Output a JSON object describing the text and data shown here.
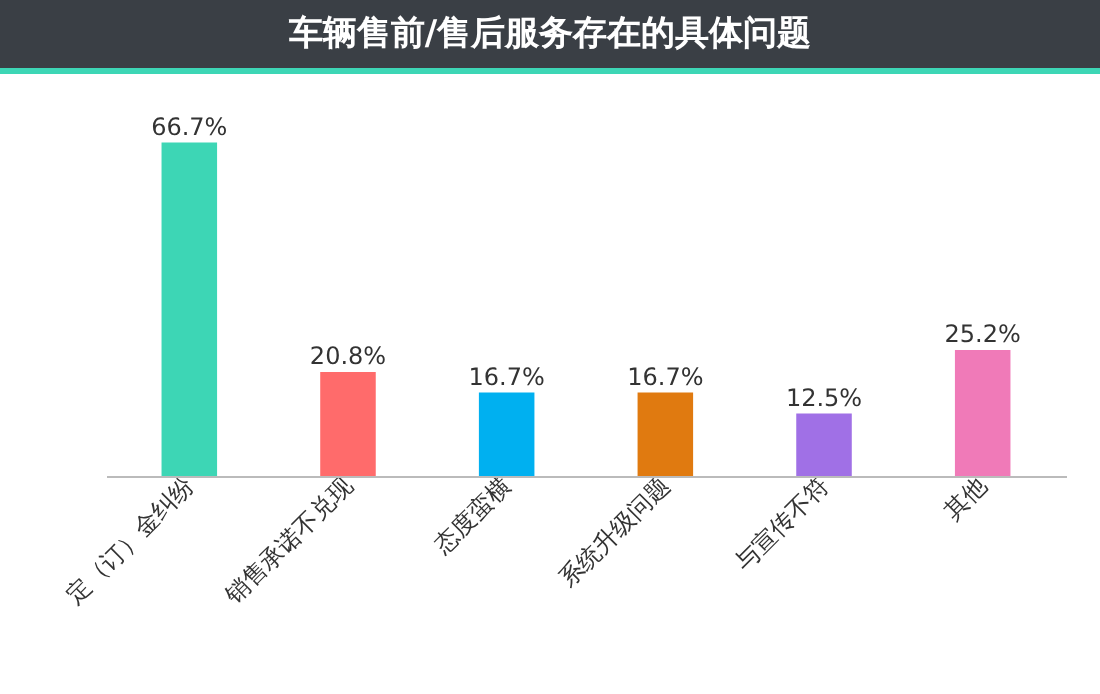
{
  "chart_data": {
    "type": "bar",
    "title": "车辆售前/售后服务存在的具体问题",
    "categories": [
      "定（订）金纠纷",
      "销售承诺不兑现",
      "态度蛮横",
      "系统升级问题",
      "与宣传不符",
      "其他"
    ],
    "values": [
      66.7,
      20.8,
      16.7,
      16.7,
      12.5,
      25.2
    ],
    "colors": [
      "#3dd6b5",
      "#ff6b6b",
      "#00b0f0",
      "#e07a10",
      "#a070e6",
      "#f07ab8"
    ],
    "value_labels": [
      "66.7%",
      "20.8%",
      "16.7%",
      "16.7%",
      "12.5%",
      "25.2%"
    ],
    "grid": false,
    "legend": false
  }
}
